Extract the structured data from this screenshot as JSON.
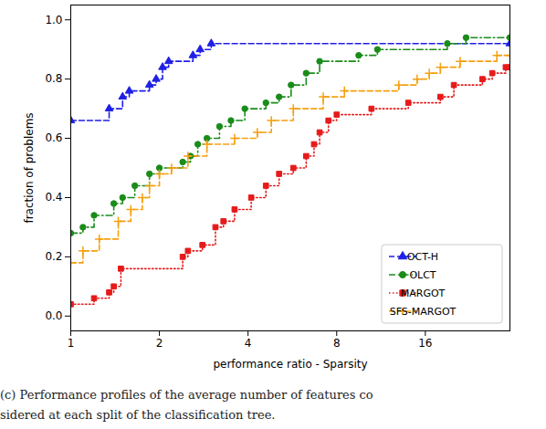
{
  "chart_data": {
    "type": "line",
    "xlabel": "performance ratio - Sparsity",
    "ylabel": "fraction of problems",
    "caption": [
      "(c) Performance profiles of the average number of features co",
      "sidered at each split of the classification tree."
    ],
    "log": "x",
    "xlim": [
      1,
      31
    ],
    "xticks": [
      1,
      2,
      4,
      8,
      16
    ],
    "ylim": [
      -0.05,
      1.05
    ],
    "yticks": [
      {
        "value": 0,
        "label": "0.0"
      },
      {
        "value": 0.2,
        "label": "0.2"
      },
      {
        "value": 0.4,
        "label": "0.4"
      },
      {
        "value": 0.6,
        "label": "0.6"
      },
      {
        "value": 0.8,
        "label": "0.8"
      },
      {
        "value": 1.0,
        "label": "1.0"
      }
    ],
    "grid": false,
    "legend": "lower right",
    "series": [
      {
        "name": "OCT-H",
        "color": "#1f1fe6",
        "marker": "triangle",
        "line_style": "dashed",
        "x": [
          1,
          1.35,
          1.5,
          1.58,
          1.85,
          1.95,
          2.05,
          2.15,
          2.6,
          2.75,
          3.0,
          31
        ],
        "values": [
          0.66,
          0.7,
          0.74,
          0.76,
          0.78,
          0.8,
          0.84,
          0.86,
          0.88,
          0.9,
          0.92,
          0.92
        ]
      },
      {
        "name": "OLCT",
        "color": "#1a8c1a",
        "marker": "circle",
        "line_style": "dashdot",
        "x": [
          1,
          1.1,
          1.2,
          1.4,
          1.5,
          1.65,
          1.85,
          2.0,
          2.4,
          2.55,
          2.7,
          2.9,
          3.2,
          3.5,
          3.9,
          4.6,
          5.1,
          5.6,
          6.3,
          7.0,
          9.5,
          11,
          19,
          22,
          31
        ],
        "values": [
          0.28,
          0.3,
          0.34,
          0.38,
          0.4,
          0.44,
          0.48,
          0.5,
          0.52,
          0.54,
          0.58,
          0.6,
          0.64,
          0.66,
          0.7,
          0.72,
          0.74,
          0.78,
          0.82,
          0.86,
          0.88,
          0.9,
          0.92,
          0.94,
          0.94
        ]
      },
      {
        "name": "MARGOT",
        "color": "#e61a1a",
        "marker": "square",
        "line_style": "dotted",
        "x": [
          1,
          1.2,
          1.35,
          1.4,
          1.48,
          2.4,
          2.5,
          2.8,
          3.1,
          3.3,
          3.6,
          4.1,
          4.6,
          5.1,
          5.7,
          6.3,
          6.7,
          7.0,
          7.5,
          8.0,
          10.5,
          14,
          18,
          20,
          25,
          27,
          30,
          31
        ],
        "values": [
          0.04,
          0.06,
          0.08,
          0.1,
          0.16,
          0.2,
          0.22,
          0.24,
          0.3,
          0.32,
          0.36,
          0.4,
          0.44,
          0.48,
          0.5,
          0.54,
          0.58,
          0.62,
          0.66,
          0.68,
          0.7,
          0.72,
          0.74,
          0.78,
          0.8,
          0.82,
          0.84,
          0.84
        ]
      },
      {
        "name": "SFS-MARGOT",
        "color": "#f5a00f",
        "marker": "plus",
        "line_style": "dashed",
        "x": [
          1,
          1.1,
          1.25,
          1.45,
          1.6,
          1.75,
          1.85,
          2.0,
          2.2,
          2.5,
          2.9,
          3.6,
          4.3,
          4.8,
          5.7,
          7.2,
          8.5,
          13,
          15,
          16.5,
          18,
          21,
          28,
          31
        ],
        "values": [
          0.18,
          0.22,
          0.26,
          0.32,
          0.36,
          0.4,
          0.44,
          0.48,
          0.5,
          0.54,
          0.58,
          0.6,
          0.62,
          0.66,
          0.7,
          0.74,
          0.76,
          0.78,
          0.8,
          0.82,
          0.84,
          0.86,
          0.88,
          0.88
        ]
      }
    ]
  }
}
